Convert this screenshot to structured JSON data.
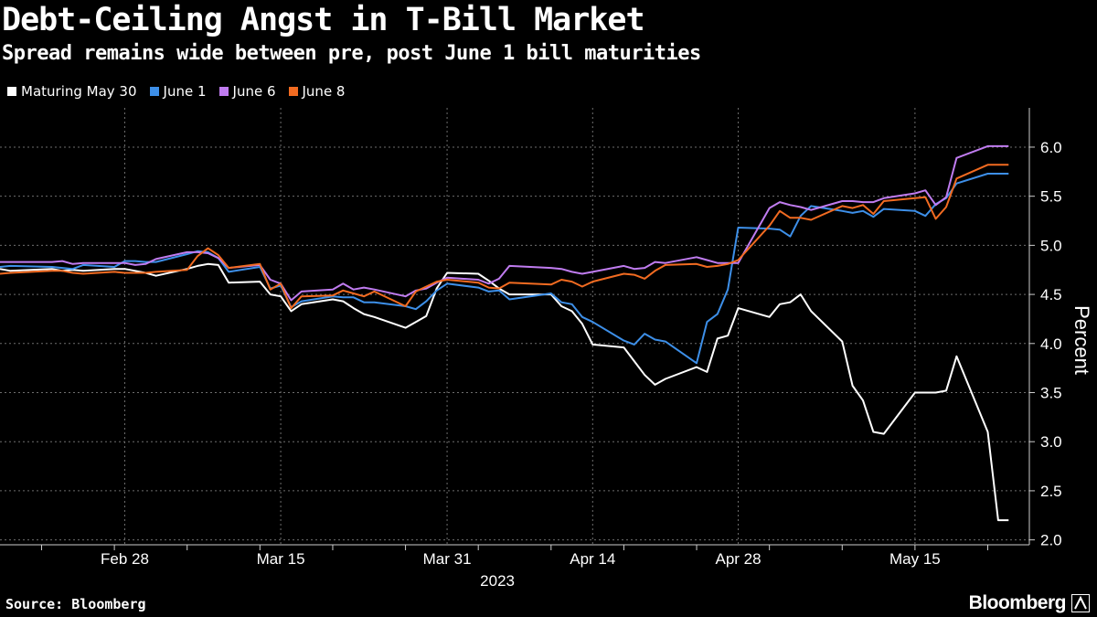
{
  "header": {
    "title": "Debt-Ceiling Angst in T-Bill Market",
    "subtitle": "Spread remains wide between pre, post June 1 bill maturities"
  },
  "footer": {
    "source": "Source: Bloomberg",
    "brand": "Bloomberg"
  },
  "chart_data": {
    "type": "line",
    "ylabel": "Percent",
    "ylim": [
      1.95,
      6.4
    ],
    "yticks": [
      2.0,
      2.5,
      3.0,
      3.5,
      4.0,
      4.5,
      5.0,
      5.5,
      6.0
    ],
    "y_axis_position": "right",
    "grid": true,
    "legend_position": "top-left",
    "x_tick_labels": [
      "Feb 28",
      "Mar 15",
      "Mar 31",
      "Apr 14",
      "Apr 28",
      "May 15"
    ],
    "x_tick_dates": [
      "2023-02-28",
      "2023-03-15",
      "2023-03-31",
      "2023-04-14",
      "2023-04-28",
      "2023-05-15"
    ],
    "x_year_label": "2023",
    "x": [
      "2023-02-16",
      "2023-02-17",
      "2023-02-21",
      "2023-02-22",
      "2023-02-23",
      "2023-02-24",
      "2023-02-27",
      "2023-02-28",
      "2023-03-01",
      "2023-03-02",
      "2023-03-03",
      "2023-03-06",
      "2023-03-07",
      "2023-03-08",
      "2023-03-09",
      "2023-03-10",
      "2023-03-13",
      "2023-03-14",
      "2023-03-15",
      "2023-03-16",
      "2023-03-17",
      "2023-03-20",
      "2023-03-21",
      "2023-03-22",
      "2023-03-23",
      "2023-03-24",
      "2023-03-27",
      "2023-03-28",
      "2023-03-29",
      "2023-03-30",
      "2023-03-31",
      "2023-04-03",
      "2023-04-04",
      "2023-04-05",
      "2023-04-06",
      "2023-04-10",
      "2023-04-11",
      "2023-04-12",
      "2023-04-13",
      "2023-04-14",
      "2023-04-17",
      "2023-04-18",
      "2023-04-19",
      "2023-04-20",
      "2023-04-21",
      "2023-04-24",
      "2023-04-25",
      "2023-04-26",
      "2023-04-27",
      "2023-04-28",
      "2023-05-01",
      "2023-05-02",
      "2023-05-03",
      "2023-05-04",
      "2023-05-05",
      "2023-05-08",
      "2023-05-09",
      "2023-05-10",
      "2023-05-11",
      "2023-05-12",
      "2023-05-15",
      "2023-05-16",
      "2023-05-17",
      "2023-05-18",
      "2023-05-19",
      "2023-05-22",
      "2023-05-23",
      "2023-05-24"
    ],
    "series": [
      {
        "name": "Maturing May 30",
        "color": "#ffffff",
        "values": [
          4.76,
          4.74,
          4.76,
          4.74,
          4.75,
          4.74,
          4.76,
          4.76,
          4.74,
          4.72,
          4.69,
          4.76,
          4.79,
          4.81,
          4.8,
          4.62,
          4.63,
          4.5,
          4.48,
          4.33,
          4.4,
          4.45,
          4.43,
          4.36,
          4.3,
          4.27,
          4.16,
          4.22,
          4.28,
          4.56,
          4.72,
          4.71,
          4.64,
          4.56,
          4.5,
          4.5,
          4.38,
          4.33,
          4.2,
          3.99,
          3.96,
          3.82,
          3.68,
          3.58,
          3.64,
          3.76,
          3.71,
          4.05,
          4.08,
          4.36,
          4.27,
          4.4,
          4.42,
          4.5,
          4.33,
          4.02,
          3.57,
          3.42,
          3.1,
          3.08,
          3.5,
          3.5,
          3.5,
          3.52,
          3.87,
          3.1,
          2.2,
          2.2
        ]
      },
      {
        "name": "June 1",
        "color": "#3d8fe8",
        "values": [
          4.78,
          4.79,
          4.78,
          4.77,
          4.76,
          4.8,
          4.78,
          4.84,
          4.84,
          4.83,
          4.83,
          4.91,
          4.94,
          4.93,
          4.87,
          4.73,
          4.78,
          4.56,
          4.59,
          4.37,
          4.43,
          4.48,
          4.47,
          4.47,
          4.42,
          4.42,
          4.38,
          4.35,
          4.43,
          4.54,
          4.61,
          4.57,
          4.53,
          4.54,
          4.45,
          4.51,
          4.42,
          4.4,
          4.27,
          4.22,
          4.03,
          3.99,
          4.1,
          4.04,
          4.02,
          3.8,
          4.22,
          4.3,
          4.55,
          5.18,
          5.17,
          5.16,
          5.09,
          5.3,
          5.4,
          5.35,
          5.33,
          5.35,
          5.29,
          5.37,
          5.35,
          5.3,
          5.42,
          5.48,
          5.63,
          5.73,
          5.73,
          5.73
        ]
      },
      {
        "name": "June 6",
        "color": "#c07cf0",
        "values": [
          4.83,
          4.83,
          4.83,
          4.84,
          4.81,
          4.82,
          4.82,
          4.82,
          4.8,
          4.81,
          4.86,
          4.93,
          4.93,
          4.92,
          4.87,
          4.77,
          4.8,
          4.65,
          4.61,
          4.44,
          4.53,
          4.55,
          4.61,
          4.55,
          4.57,
          4.55,
          4.48,
          4.54,
          4.56,
          4.62,
          4.67,
          4.65,
          4.61,
          4.66,
          4.79,
          4.77,
          4.76,
          4.73,
          4.71,
          4.73,
          4.79,
          4.76,
          4.77,
          4.83,
          4.82,
          4.88,
          4.85,
          4.82,
          4.82,
          4.82,
          5.38,
          5.44,
          5.41,
          5.39,
          5.36,
          5.45,
          5.45,
          5.44,
          5.44,
          5.48,
          5.53,
          5.56,
          5.41,
          5.49,
          5.89,
          6.01,
          6.01,
          6.01
        ]
      },
      {
        "name": "June 8",
        "color": "#f26b21",
        "values": [
          4.71,
          4.72,
          4.74,
          4.74,
          4.72,
          4.71,
          4.73,
          4.72,
          4.72,
          4.72,
          4.73,
          4.75,
          4.89,
          4.97,
          4.9,
          4.77,
          4.81,
          4.55,
          4.61,
          4.36,
          4.48,
          4.49,
          4.54,
          4.51,
          4.48,
          4.53,
          4.38,
          4.53,
          4.58,
          4.63,
          4.65,
          4.62,
          4.57,
          4.56,
          4.62,
          4.6,
          4.65,
          4.63,
          4.58,
          4.63,
          4.71,
          4.7,
          4.66,
          4.74,
          4.8,
          4.81,
          4.78,
          4.79,
          4.81,
          4.85,
          5.2,
          5.35,
          5.28,
          5.28,
          5.26,
          5.4,
          5.38,
          5.41,
          5.32,
          5.45,
          5.48,
          5.49,
          5.27,
          5.39,
          5.68,
          5.82,
          5.82,
          5.82
        ]
      }
    ]
  }
}
